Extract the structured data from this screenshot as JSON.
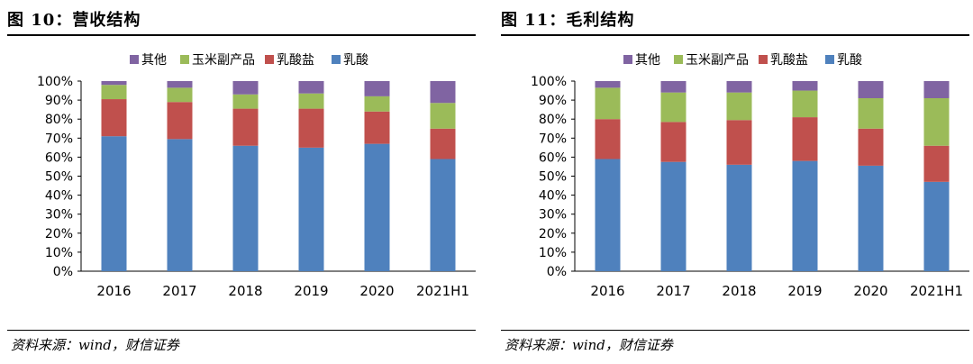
{
  "chart_data": [
    {
      "type": "bar",
      "stacked": true,
      "title": "图 10：营收结构",
      "source": "资料来源：wind，财信证券",
      "categories": [
        "2016",
        "2017",
        "2018",
        "2019",
        "2020",
        "2021H1"
      ],
      "ylim": [
        0,
        100
      ],
      "yticks": [
        "0%",
        "10%",
        "20%",
        "30%",
        "40%",
        "50%",
        "60%",
        "70%",
        "80%",
        "90%",
        "100%"
      ],
      "legend_position": "top",
      "series": [
        {
          "name": "乳酸",
          "color": "#4F81BD",
          "values": [
            71,
            69.5,
            66,
            65,
            67,
            59
          ]
        },
        {
          "name": "乳酸盐",
          "color": "#C0504D",
          "values": [
            19.5,
            19.5,
            19.5,
            20.5,
            17,
            16
          ]
        },
        {
          "name": "玉米副产品",
          "color": "#9BBB59",
          "values": [
            7.5,
            7.5,
            7.5,
            8,
            8,
            13.5
          ]
        },
        {
          "name": "其他",
          "color": "#8064A2",
          "values": [
            2,
            3.5,
            7,
            6.5,
            8,
            11.5
          ]
        }
      ]
    },
    {
      "type": "bar",
      "stacked": true,
      "title": "图 11：毛利结构",
      "source": "资料来源：wind，财信证券",
      "categories": [
        "2016",
        "2017",
        "2018",
        "2019",
        "2020",
        "2021H1"
      ],
      "ylim": [
        0,
        100
      ],
      "yticks": [
        "0%",
        "10%",
        "20%",
        "30%",
        "40%",
        "50%",
        "60%",
        "70%",
        "80%",
        "90%",
        "100%"
      ],
      "legend_position": "top",
      "series": [
        {
          "name": "乳酸",
          "color": "#4F81BD",
          "values": [
            59,
            57.5,
            56,
            58,
            55.5,
            47
          ]
        },
        {
          "name": "乳酸盐",
          "color": "#C0504D",
          "values": [
            21,
            21,
            23.5,
            23,
            19.5,
            19
          ]
        },
        {
          "name": "玉米副产品",
          "color": "#9BBB59",
          "values": [
            16.5,
            15.5,
            14.5,
            14,
            16,
            25
          ]
        },
        {
          "name": "其他",
          "color": "#8064A2",
          "values": [
            3.5,
            6,
            6,
            5,
            9,
            9
          ]
        }
      ]
    }
  ]
}
